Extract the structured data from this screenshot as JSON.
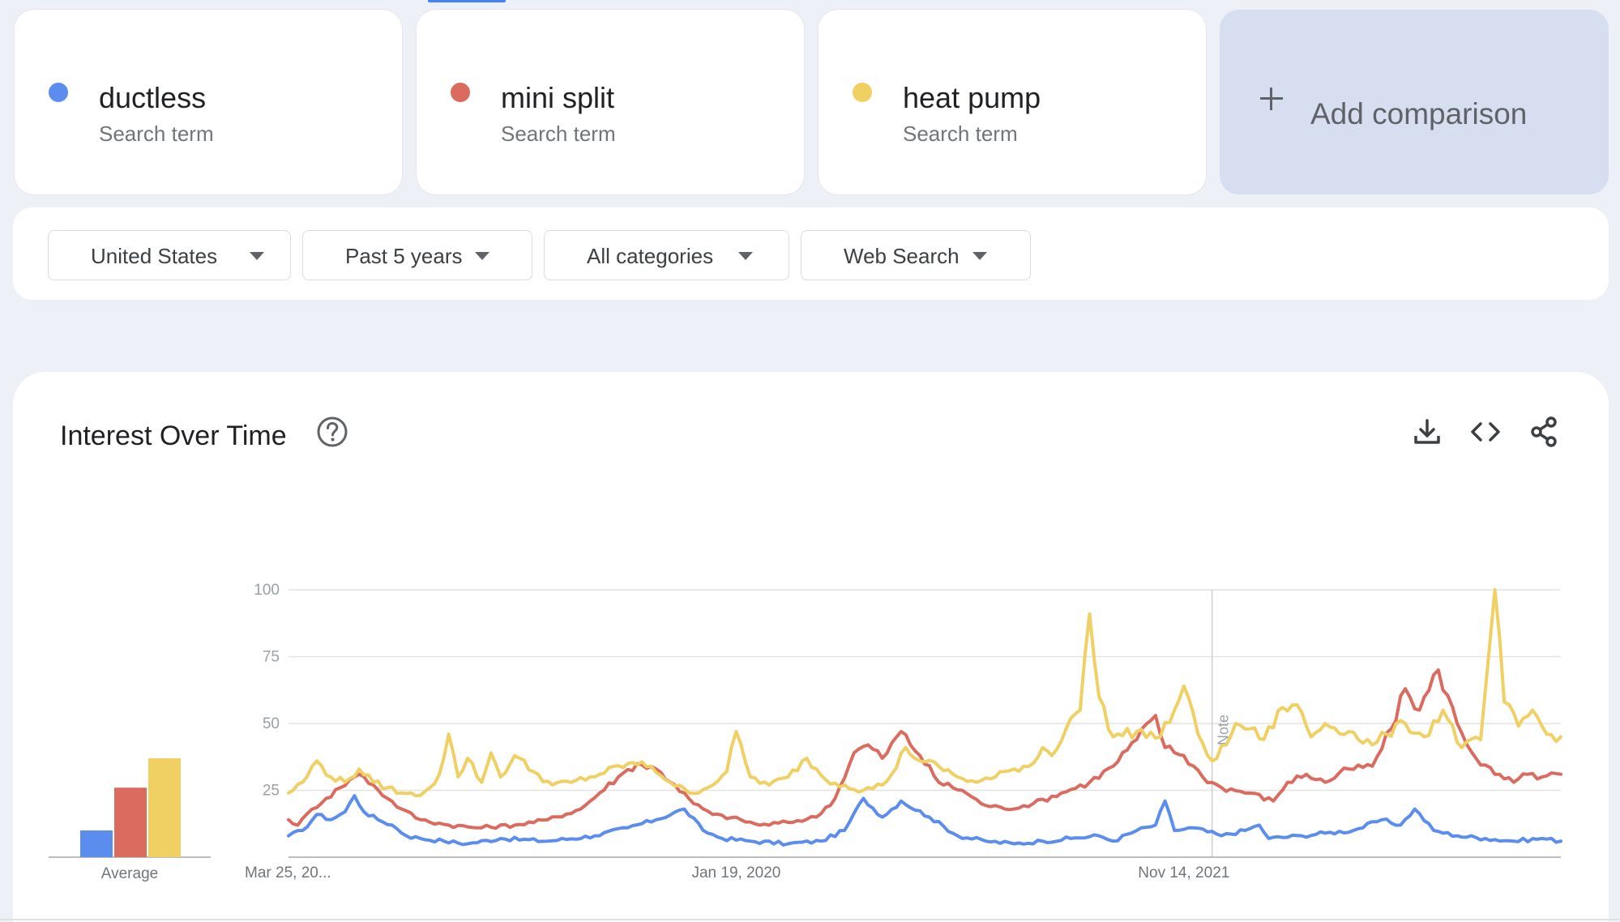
{
  "terms": [
    {
      "name": "ductless",
      "subtitle": "Search term",
      "color": "#5b8def"
    },
    {
      "name": "mini split",
      "subtitle": "Search term",
      "color": "#db6a5f"
    },
    {
      "name": "heat pump",
      "subtitle": "Search term",
      "color": "#f0cf63"
    }
  ],
  "add_comparison": {
    "label": "Add comparison"
  },
  "filters": [
    {
      "label": "United States"
    },
    {
      "label": "Past 5 years"
    },
    {
      "label": "All categories"
    },
    {
      "label": "Web Search"
    }
  ],
  "card": {
    "title": "Interest Over Time",
    "icons": [
      "help-icon",
      "download-icon",
      "embed-icon",
      "share-icon"
    ]
  },
  "chart_data": {
    "type": "line",
    "ylim": [
      0,
      100
    ],
    "yticks": [
      25,
      50,
      75,
      100
    ],
    "x_ticks": [
      {
        "index": 0,
        "label": "Mar 25, 20..."
      },
      {
        "index": 95,
        "label": "Jan 19, 2020"
      },
      {
        "index": 190,
        "label": "Nov 14, 2021"
      }
    ],
    "note": {
      "index": 196,
      "label": "Note"
    },
    "grid": true,
    "average": {
      "label": "Average",
      "values": [
        10,
        26,
        37
      ]
    },
    "series": [
      {
        "name": "ductless",
        "color": "#5b8def",
        "anchors": [
          [
            0,
            8
          ],
          [
            3,
            10
          ],
          [
            6,
            16
          ],
          [
            9,
            14
          ],
          [
            12,
            17
          ],
          [
            14,
            23
          ],
          [
            16,
            17
          ],
          [
            19,
            14
          ],
          [
            22,
            12
          ],
          [
            25,
            8
          ],
          [
            28,
            7
          ],
          [
            33,
            6
          ],
          [
            38,
            5
          ],
          [
            45,
            7
          ],
          [
            55,
            6
          ],
          [
            65,
            8
          ],
          [
            72,
            11
          ],
          [
            78,
            14
          ],
          [
            84,
            18
          ],
          [
            88,
            10
          ],
          [
            92,
            7
          ],
          [
            98,
            6
          ],
          [
            106,
            5
          ],
          [
            113,
            6
          ],
          [
            118,
            10
          ],
          [
            122,
            22
          ],
          [
            126,
            15
          ],
          [
            130,
            21
          ],
          [
            136,
            15
          ],
          [
            142,
            8
          ],
          [
            148,
            6
          ],
          [
            154,
            5
          ],
          [
            160,
            6
          ],
          [
            166,
            7
          ],
          [
            172,
            8
          ],
          [
            175,
            6
          ],
          [
            180,
            10
          ],
          [
            184,
            12
          ],
          [
            186,
            21
          ],
          [
            188,
            10
          ],
          [
            192,
            11
          ],
          [
            198,
            8
          ],
          [
            203,
            10
          ],
          [
            206,
            12
          ],
          [
            208,
            7
          ],
          [
            215,
            8
          ],
          [
            220,
            9
          ],
          [
            226,
            10
          ],
          [
            232,
            14
          ],
          [
            236,
            12
          ],
          [
            239,
            18
          ],
          [
            243,
            10
          ],
          [
            248,
            8
          ],
          [
            254,
            7
          ],
          [
            260,
            6
          ],
          [
            266,
            7
          ],
          [
            270,
            6
          ]
        ]
      },
      {
        "name": "mini split",
        "color": "#db6a5f",
        "anchors": [
          [
            0,
            14
          ],
          [
            2,
            12
          ],
          [
            5,
            18
          ],
          [
            8,
            22
          ],
          [
            11,
            26
          ],
          [
            13,
            29
          ],
          [
            15,
            31
          ],
          [
            18,
            27
          ],
          [
            21,
            22
          ],
          [
            24,
            18
          ],
          [
            28,
            14
          ],
          [
            34,
            12
          ],
          [
            40,
            11
          ],
          [
            48,
            12
          ],
          [
            55,
            14
          ],
          [
            62,
            18
          ],
          [
            66,
            24
          ],
          [
            70,
            30
          ],
          [
            74,
            35
          ],
          [
            78,
            33
          ],
          [
            82,
            27
          ],
          [
            86,
            20
          ],
          [
            90,
            16
          ],
          [
            96,
            14
          ],
          [
            100,
            12
          ],
          [
            106,
            13
          ],
          [
            112,
            15
          ],
          [
            116,
            22
          ],
          [
            120,
            39
          ],
          [
            123,
            42
          ],
          [
            126,
            37
          ],
          [
            130,
            47
          ],
          [
            134,
            38
          ],
          [
            138,
            28
          ],
          [
            143,
            25
          ],
          [
            147,
            20
          ],
          [
            152,
            18
          ],
          [
            158,
            20
          ],
          [
            164,
            24
          ],
          [
            170,
            28
          ],
          [
            175,
            34
          ],
          [
            180,
            44
          ],
          [
            184,
            53
          ],
          [
            186,
            41
          ],
          [
            190,
            38
          ],
          [
            194,
            30
          ],
          [
            198,
            26
          ],
          [
            204,
            24
          ],
          [
            209,
            21
          ],
          [
            212,
            28
          ],
          [
            216,
            31
          ],
          [
            220,
            28
          ],
          [
            225,
            33
          ],
          [
            230,
            34
          ],
          [
            234,
            48
          ],
          [
            237,
            63
          ],
          [
            240,
            55
          ],
          [
            244,
            70
          ],
          [
            248,
            50
          ],
          [
            252,
            37
          ],
          [
            256,
            31
          ],
          [
            260,
            28
          ],
          [
            263,
            31
          ],
          [
            266,
            30
          ],
          [
            270,
            31
          ]
        ]
      },
      {
        "name": "heat pump",
        "color": "#f0cf63",
        "anchors": [
          [
            0,
            24
          ],
          [
            3,
            28
          ],
          [
            6,
            36
          ],
          [
            9,
            30
          ],
          [
            12,
            28
          ],
          [
            15,
            33
          ],
          [
            18,
            28
          ],
          [
            21,
            26
          ],
          [
            24,
            24
          ],
          [
            27,
            23
          ],
          [
            30,
            26
          ],
          [
            32,
            31
          ],
          [
            34,
            46
          ],
          [
            36,
            30
          ],
          [
            38,
            37
          ],
          [
            41,
            28
          ],
          [
            43,
            39
          ],
          [
            45,
            30
          ],
          [
            48,
            38
          ],
          [
            52,
            32
          ],
          [
            56,
            27
          ],
          [
            60,
            28
          ],
          [
            66,
            31
          ],
          [
            72,
            35
          ],
          [
            77,
            34
          ],
          [
            81,
            28
          ],
          [
            85,
            24
          ],
          [
            89,
            26
          ],
          [
            93,
            32
          ],
          [
            95,
            47
          ],
          [
            98,
            30
          ],
          [
            102,
            27
          ],
          [
            106,
            30
          ],
          [
            110,
            37
          ],
          [
            114,
            29
          ],
          [
            118,
            27
          ],
          [
            122,
            25
          ],
          [
            126,
            27
          ],
          [
            128,
            31
          ],
          [
            131,
            41
          ],
          [
            134,
            36
          ],
          [
            138,
            34
          ],
          [
            142,
            30
          ],
          [
            146,
            28
          ],
          [
            150,
            30
          ],
          [
            154,
            33
          ],
          [
            158,
            35
          ],
          [
            160,
            41
          ],
          [
            162,
            38
          ],
          [
            166,
            52
          ],
          [
            168,
            55
          ],
          [
            170,
            91
          ],
          [
            172,
            60
          ],
          [
            175,
            45
          ],
          [
            180,
            47
          ],
          [
            185,
            45
          ],
          [
            188,
            55
          ],
          [
            190,
            64
          ],
          [
            193,
            46
          ],
          [
            196,
            36
          ],
          [
            199,
            42
          ],
          [
            201,
            50
          ],
          [
            204,
            48
          ],
          [
            207,
            44
          ],
          [
            211,
            56
          ],
          [
            214,
            57
          ],
          [
            217,
            45
          ],
          [
            220,
            50
          ],
          [
            225,
            47
          ],
          [
            230,
            42
          ],
          [
            233,
            46
          ],
          [
            237,
            50
          ],
          [
            241,
            45
          ],
          [
            245,
            55
          ],
          [
            249,
            41
          ],
          [
            253,
            44
          ],
          [
            256,
            100
          ],
          [
            258,
            58
          ],
          [
            261,
            49
          ],
          [
            264,
            55
          ],
          [
            267,
            46
          ],
          [
            270,
            45
          ]
        ]
      }
    ]
  }
}
